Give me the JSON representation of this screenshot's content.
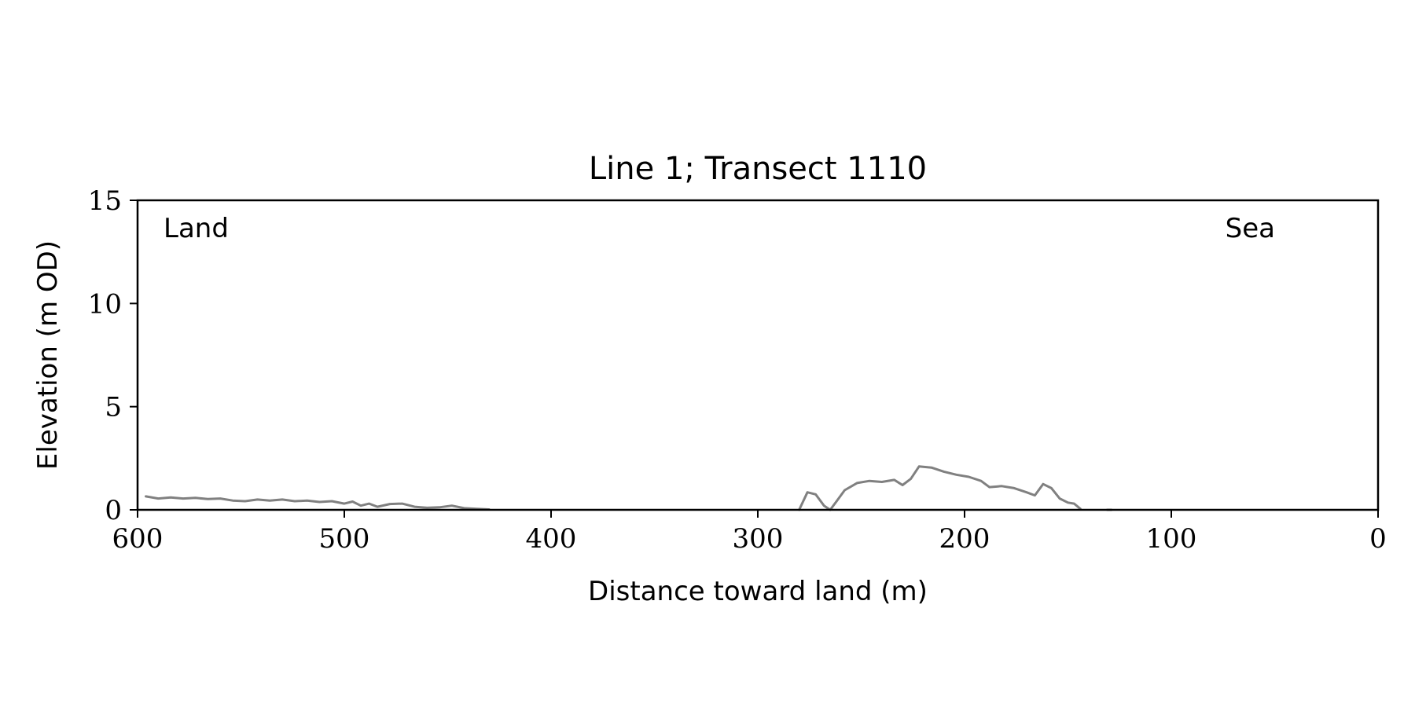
{
  "chart_data": {
    "type": "line",
    "title": "Line 1; Transect 1110",
    "xlabel": "Distance toward land (m)",
    "ylabel": "Elevation (m OD)",
    "xlim": [
      600,
      0
    ],
    "ylim": [
      0,
      15
    ],
    "x_ticks": [
      "600",
      "500",
      "400",
      "300",
      "200",
      "100",
      "0"
    ],
    "y_ticks": [
      "0",
      "5",
      "10",
      "15"
    ],
    "annotations": {
      "left": "Land",
      "right": "Sea"
    },
    "grid": false,
    "line_color": "#808080",
    "series": [
      {
        "segments": [
          [
            [
              596,
              0.65
            ],
            [
              590,
              0.55
            ],
            [
              584,
              0.6
            ],
            [
              578,
              0.55
            ],
            [
              572,
              0.58
            ],
            [
              566,
              0.52
            ],
            [
              560,
              0.55
            ],
            [
              554,
              0.45
            ],
            [
              548,
              0.42
            ],
            [
              542,
              0.5
            ],
            [
              536,
              0.45
            ],
            [
              530,
              0.5
            ],
            [
              524,
              0.42
            ],
            [
              518,
              0.45
            ],
            [
              512,
              0.38
            ],
            [
              506,
              0.42
            ],
            [
              500,
              0.3
            ],
            [
              496,
              0.4
            ],
            [
              492,
              0.2
            ],
            [
              488,
              0.3
            ],
            [
              484,
              0.15
            ],
            [
              478,
              0.28
            ],
            [
              472,
              0.3
            ],
            [
              466,
              0.15
            ],
            [
              460,
              0.1
            ],
            [
              454,
              0.12
            ],
            [
              448,
              0.2
            ],
            [
              442,
              0.08
            ],
            [
              436,
              0.05
            ],
            [
              430,
              0.02
            ]
          ],
          [
            [
              280,
              0.0
            ],
            [
              276,
              0.85
            ],
            [
              272,
              0.75
            ],
            [
              268,
              0.2
            ],
            [
              265,
              0.0
            ],
            [
              262,
              0.4
            ],
            [
              258,
              0.95
            ],
            [
              252,
              1.3
            ],
            [
              246,
              1.4
            ],
            [
              240,
              1.35
            ],
            [
              234,
              1.45
            ],
            [
              230,
              1.2
            ],
            [
              226,
              1.5
            ],
            [
              222,
              2.1
            ],
            [
              216,
              2.05
            ],
            [
              210,
              1.85
            ],
            [
              204,
              1.7
            ],
            [
              198,
              1.6
            ],
            [
              192,
              1.4
            ],
            [
              188,
              1.1
            ],
            [
              182,
              1.15
            ],
            [
              176,
              1.05
            ],
            [
              170,
              0.85
            ],
            [
              166,
              0.7
            ],
            [
              162,
              1.25
            ],
            [
              158,
              1.05
            ],
            [
              154,
              0.55
            ],
            [
              150,
              0.35
            ],
            [
              147,
              0.3
            ],
            [
              144,
              0.05
            ]
          ],
          [
            [
              131,
              0.0
            ],
            [
              129,
              0.0
            ]
          ]
        ]
      }
    ]
  }
}
